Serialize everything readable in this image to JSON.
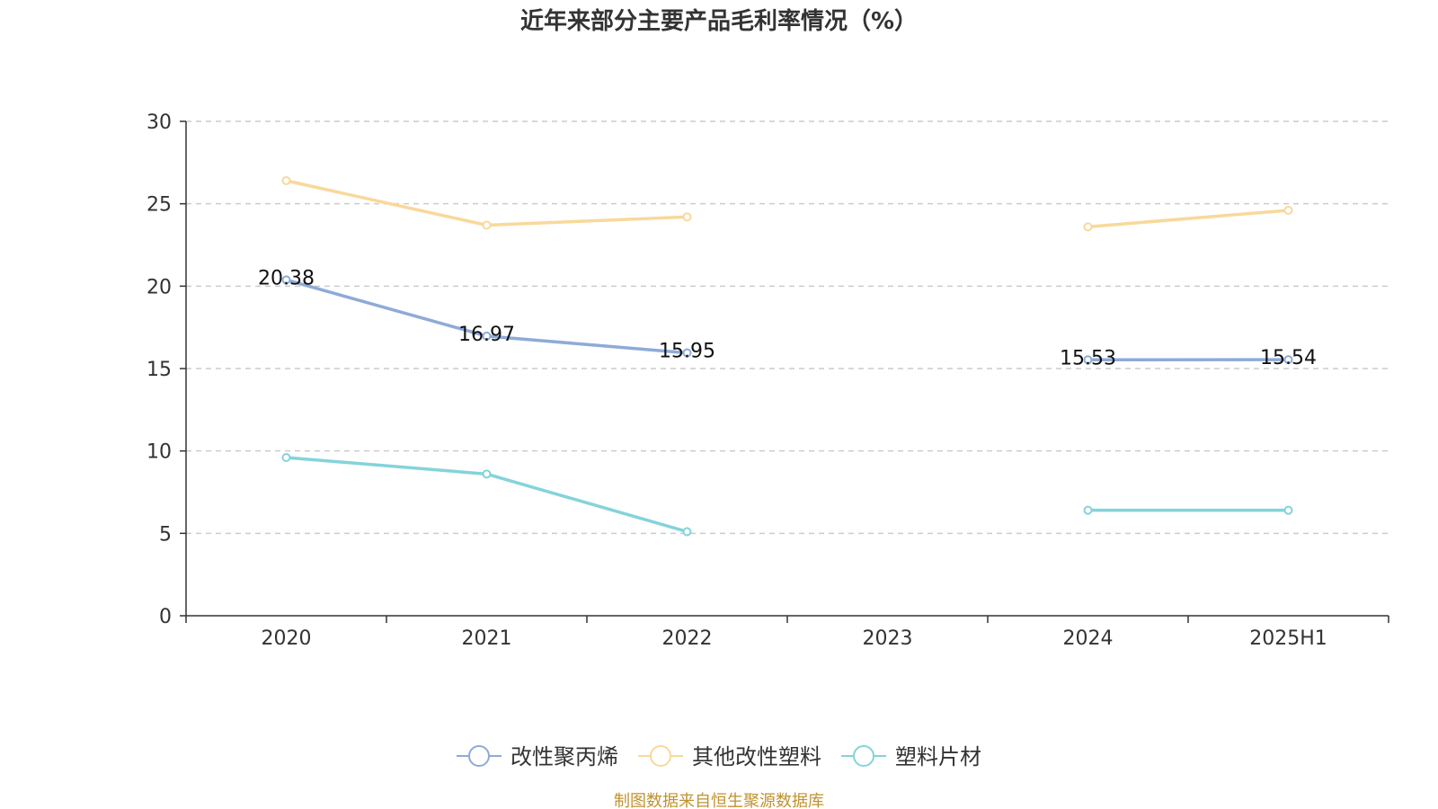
{
  "chart_data": {
    "type": "line",
    "title": "近年来部分主要产品毛利率情况（%）",
    "categories": [
      "2020",
      "2021",
      "2022",
      "2023",
      "2024",
      "2025H1"
    ],
    "ylim": [
      0,
      30
    ],
    "yticks": [
      0,
      5,
      10,
      15,
      20,
      25,
      30
    ],
    "grid": true,
    "legend_position": "bottom",
    "series": [
      {
        "name": "改性聚丙烯",
        "color": "#8eaad8",
        "values": [
          20.38,
          16.97,
          15.95,
          null,
          15.53,
          15.54
        ],
        "show_labels": true
      },
      {
        "name": "其他改性塑料",
        "color": "#f9d89a",
        "values": [
          26.4,
          23.7,
          24.2,
          null,
          23.6,
          24.6
        ],
        "show_labels": false
      },
      {
        "name": "塑料片材",
        "color": "#84d3da",
        "values": [
          9.6,
          8.6,
          5.1,
          null,
          6.4,
          6.4
        ],
        "show_labels": false
      }
    ],
    "source": "制图数据来自恒生聚源数据库",
    "source_color": "#c0922e"
  }
}
